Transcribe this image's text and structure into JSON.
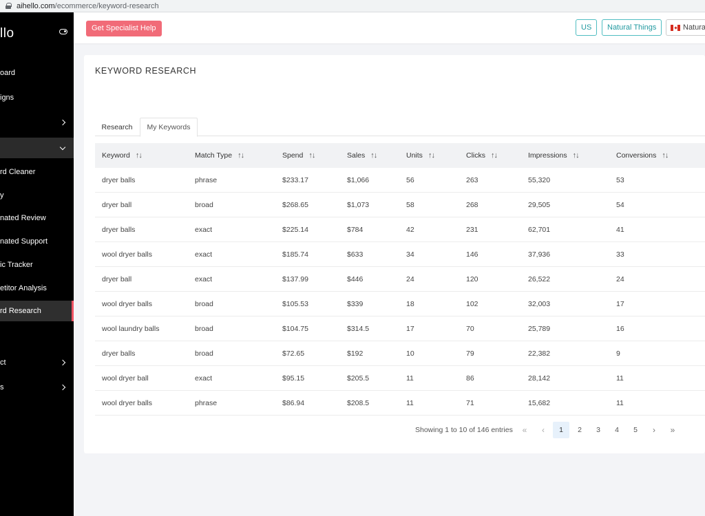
{
  "browser": {
    "url_host": "aihello.com",
    "url_path": "/ecommerce/keyword-research"
  },
  "sidebar": {
    "logo": "llo",
    "items": [
      {
        "label": "oard",
        "chevron": ""
      },
      {
        "label": "igns",
        "chevron": ""
      },
      {
        "label": "",
        "chevron": "right"
      },
      {
        "label": "",
        "chevron": "down"
      },
      {
        "label": "rd Cleaner",
        "chevron": ""
      },
      {
        "label": "y",
        "chevron": ""
      },
      {
        "label": "nated Review",
        "chevron": ""
      },
      {
        "label": "nated Support",
        "chevron": ""
      },
      {
        "label": "ic Tracker",
        "chevron": ""
      },
      {
        "label": "etitor Analysis",
        "chevron": ""
      },
      {
        "label": "rd Research",
        "chevron": ""
      },
      {
        "label": "ct",
        "chevron": "right"
      },
      {
        "label": "s",
        "chevron": "right"
      }
    ]
  },
  "topbar": {
    "help_label": "Get Specialist Help",
    "region_label": "US",
    "brand_label": "Natural Things",
    "store_label": "NaturalT"
  },
  "page": {
    "title": "KEYWORD RESEARCH",
    "tabs": [
      "Research",
      "My Keywords"
    ]
  },
  "table": {
    "headers": [
      "Keyword",
      "Match Type",
      "Spend",
      "Sales",
      "Units",
      "Clicks",
      "Impressions",
      "Conversions"
    ],
    "rows": [
      [
        "dryer balls",
        "phrase",
        "$233.17",
        "$1,066",
        "56",
        "263",
        "55,320",
        "53"
      ],
      [
        "dryer ball",
        "broad",
        "$268.65",
        "$1,073",
        "58",
        "268",
        "29,505",
        "54"
      ],
      [
        "dryer balls",
        "exact",
        "$225.14",
        "$784",
        "42",
        "231",
        "62,701",
        "41"
      ],
      [
        "wool dryer balls",
        "exact",
        "$185.74",
        "$633",
        "34",
        "146",
        "37,936",
        "33"
      ],
      [
        "dryer ball",
        "exact",
        "$137.99",
        "$446",
        "24",
        "120",
        "26,522",
        "24"
      ],
      [
        "wool dryer balls",
        "broad",
        "$105.53",
        "$339",
        "18",
        "102",
        "32,003",
        "17"
      ],
      [
        "wool laundry balls",
        "broad",
        "$104.75",
        "$314.5",
        "17",
        "70",
        "25,789",
        "16"
      ],
      [
        "dryer balls",
        "broad",
        "$72.65",
        "$192",
        "10",
        "79",
        "22,382",
        "9"
      ],
      [
        "wool dryer ball",
        "exact",
        "$95.15",
        "$205.5",
        "11",
        "86",
        "28,142",
        "11"
      ],
      [
        "wool dryer balls",
        "phrase",
        "$86.94",
        "$208.5",
        "11",
        "71",
        "15,682",
        "11"
      ]
    ]
  },
  "pagination": {
    "showing": "Showing 1 to 10 of 146 entries",
    "first": "«",
    "prev": "‹",
    "pages": [
      "1",
      "2",
      "3",
      "4",
      "5"
    ],
    "current": "1",
    "next": "›",
    "last": "»"
  },
  "colors": {
    "accent": "#f16b78",
    "teal": "#229aa0",
    "active_border": "#ef5363"
  }
}
